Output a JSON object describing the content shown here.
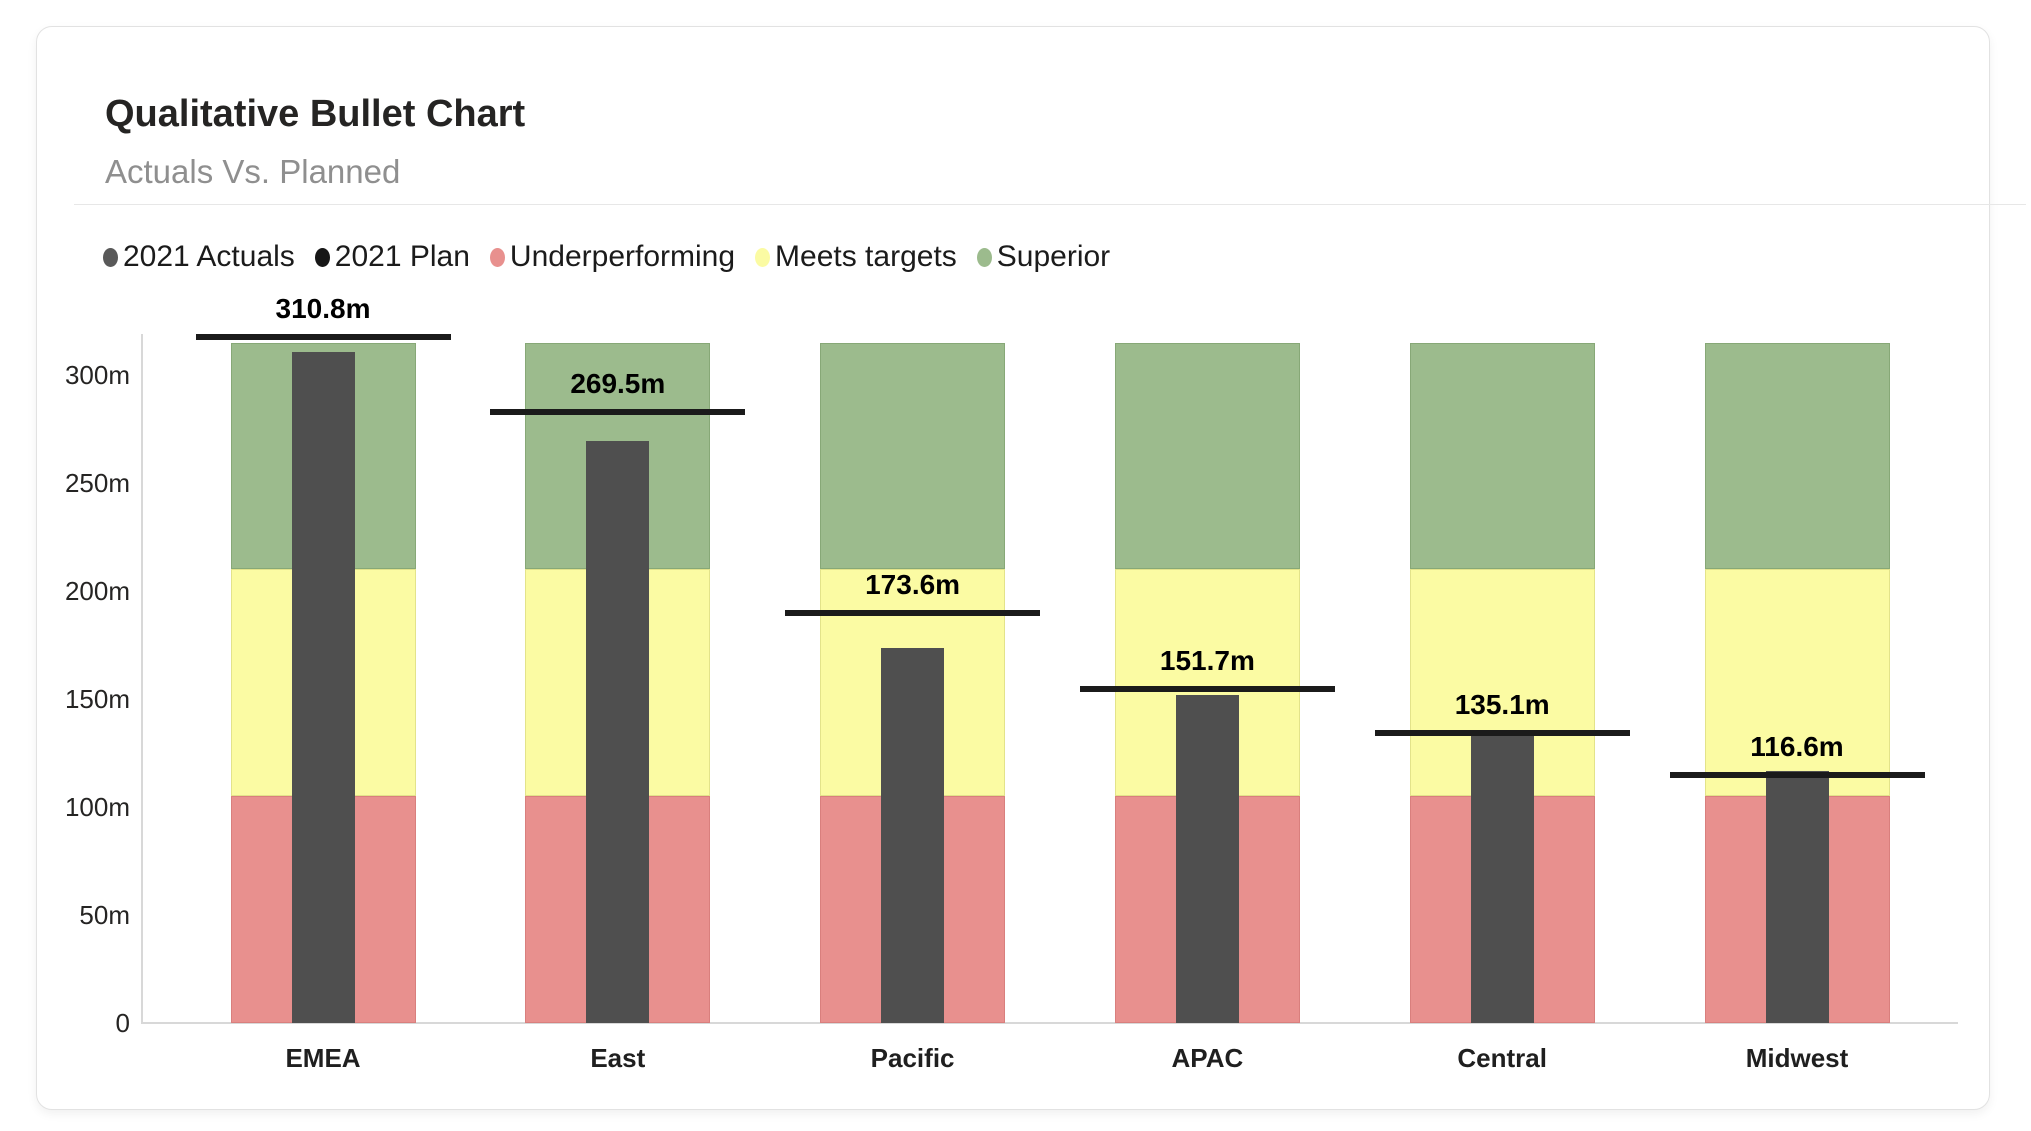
{
  "card": {
    "title": "Qualitative Bullet Chart",
    "subtitle": "Actuals Vs. Planned"
  },
  "legend": [
    {
      "label": "2021 Actuals",
      "color": "#595959"
    },
    {
      "label": "2021 Plan",
      "color": "#171717"
    },
    {
      "label": "Underperforming",
      "color": "#e8908e"
    },
    {
      "label": "Meets targets",
      "color": "#fbfba3"
    },
    {
      "label": "Superior",
      "color": "#9cbb8d"
    }
  ],
  "chart_data": {
    "type": "bar",
    "subtype": "bullet",
    "title": "Qualitative Bullet Chart",
    "subtitle": "Actuals Vs. Planned",
    "categories": [
      "EMEA",
      "East",
      "Pacific",
      "APAC",
      "Central",
      "Midwest"
    ],
    "series": [
      {
        "name": "2021 Actuals",
        "values": [
          310.8,
          269.5,
          173.6,
          151.7,
          135.1,
          116.6
        ],
        "labels": [
          "310.8m",
          "269.5m",
          "173.6m",
          "151.7m",
          "135.1m",
          "116.6m"
        ],
        "color": "#4f4f4f"
      },
      {
        "name": "2021 Plan",
        "values": [
          317.5,
          282.9,
          189.8,
          154.6,
          134.3,
          114.8
        ],
        "color": "#1b1b1b",
        "note": "target lines are unlabeled in the chart; values estimated from line positions"
      }
    ],
    "qualitative_bands": [
      {
        "name": "Underperforming",
        "from": 0,
        "to": 105,
        "color": "#e8908e",
        "border": "#d97f7d"
      },
      {
        "name": "Meets targets",
        "from": 105,
        "to": 210,
        "color": "#fbfba3",
        "border": "#e3e38a"
      },
      {
        "name": "Superior",
        "from": 210,
        "to": 315,
        "color": "#9cbb8d",
        "border": "#87a877"
      }
    ],
    "y_ticks": [
      {
        "value": 0,
        "label": "0"
      },
      {
        "value": 50,
        "label": "50m"
      },
      {
        "value": 100,
        "label": "100m"
      },
      {
        "value": 150,
        "label": "150m"
      },
      {
        "value": 200,
        "label": "200m"
      },
      {
        "value": 250,
        "label": "250m"
      },
      {
        "value": 300,
        "label": "300m"
      }
    ],
    "ylim": [
      0,
      318
    ],
    "grid": false,
    "legend_position": "top",
    "xlabel": "",
    "ylabel": ""
  }
}
